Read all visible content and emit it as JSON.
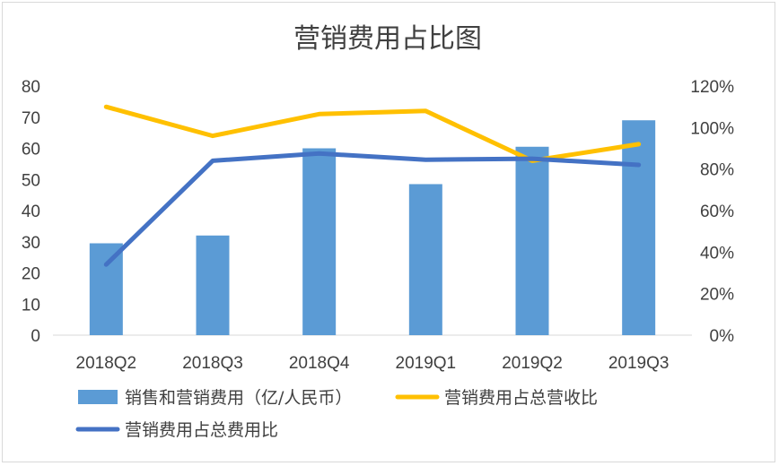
{
  "chart_data": {
    "type": "bar",
    "title": "营销费用占比图",
    "categories": [
      "2018Q2",
      "2018Q3",
      "2018Q4",
      "2019Q1",
      "2019Q2",
      "2019Q3"
    ],
    "series": [
      {
        "name": "销售和营销费用（亿/人民币）",
        "type": "bar",
        "axis": "left",
        "color": "#5b9bd5",
        "values": [
          29.5,
          32,
          60,
          48.5,
          60.5,
          69
        ]
      },
      {
        "name": "营销费用占总营收比",
        "type": "line",
        "axis": "right",
        "color": "#ffc000",
        "values": [
          110,
          96,
          106.5,
          108,
          84,
          92
        ]
      },
      {
        "name": "营销费用占总费用比",
        "type": "line",
        "axis": "right",
        "color": "#4472c4",
        "values": [
          34,
          84,
          87.5,
          84.5,
          85,
          82
        ]
      }
    ],
    "ylim_left": [
      0,
      80
    ],
    "yticks_left": [
      "0",
      "10",
      "20",
      "30",
      "40",
      "50",
      "60",
      "70",
      "80"
    ],
    "ylim_right": [
      0,
      120
    ],
    "yticks_right": [
      "0%",
      "20%",
      "40%",
      "60%",
      "80%",
      "100%",
      "120%"
    ],
    "grid": false,
    "legend_position": "bottom"
  }
}
